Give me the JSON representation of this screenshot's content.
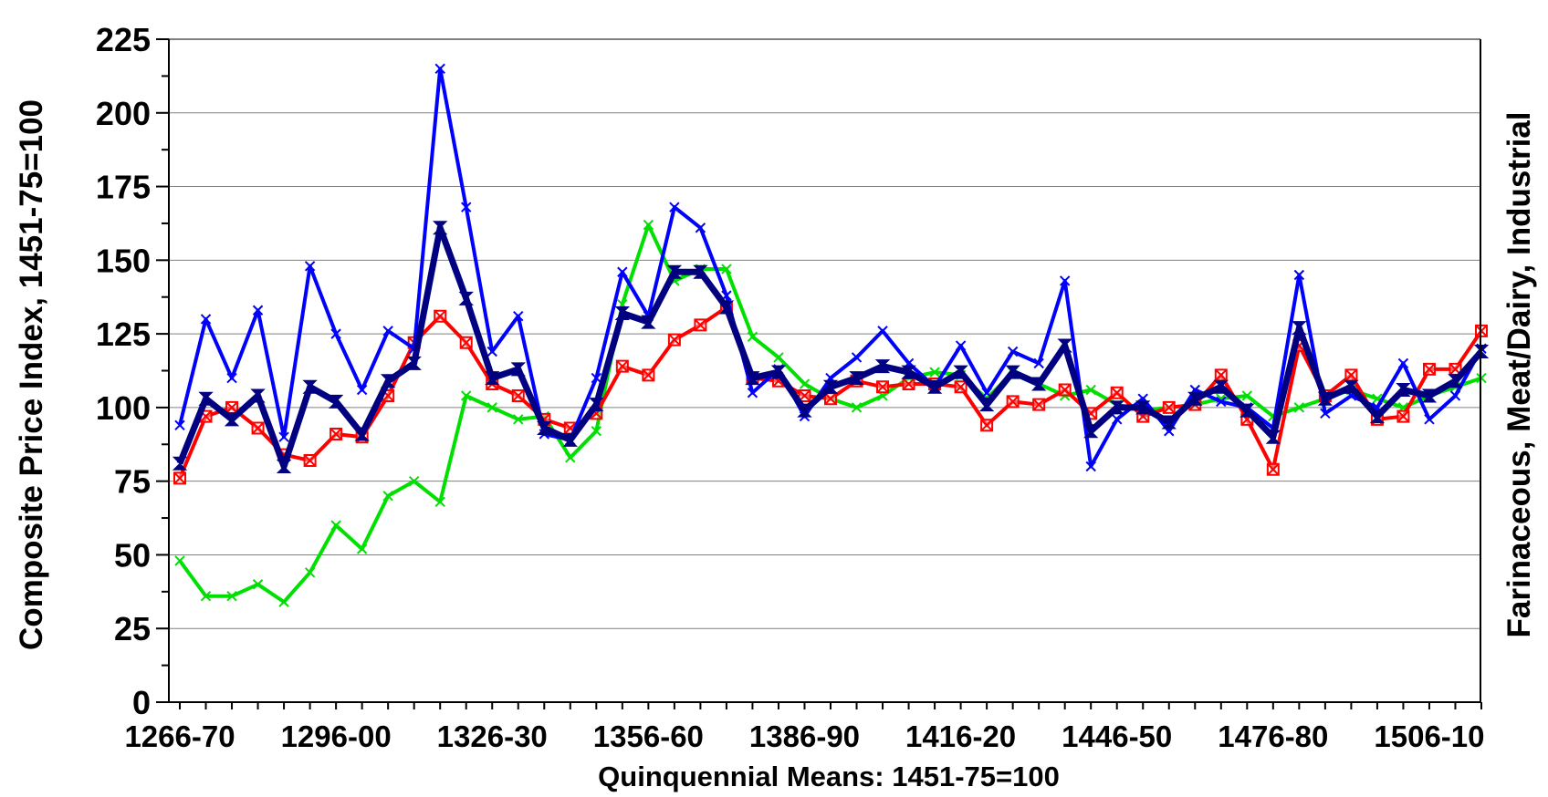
{
  "chart_data": {
    "type": "line",
    "ylabel": "Composite Price Index, 1451-75=100",
    "ylabel_right": "Farinaceous, Meat/Dairy, Industrial",
    "xlabel": "Quinquennial Means: 1451-75=100",
    "ylim": [
      0,
      225
    ],
    "yticks": [
      0,
      25,
      50,
      75,
      100,
      125,
      150,
      175,
      200,
      225
    ],
    "grid": true,
    "x_tick_labels": [
      "1266-70",
      "1296-00",
      "1326-30",
      "1356-60",
      "1386-90",
      "1416-20",
      "1446-50",
      "1476-80",
      "1506-10"
    ],
    "x_tick_label_indices": [
      0,
      6,
      12,
      18,
      24,
      30,
      36,
      42,
      48
    ],
    "series": [
      {
        "color": "#00e000",
        "marker": "x",
        "values": [
          48,
          36,
          36,
          40,
          34,
          44,
          60,
          52,
          70,
          75,
          68,
          104,
          100,
          96,
          97,
          83,
          92,
          135,
          162,
          143,
          147,
          147,
          124,
          117,
          108,
          103,
          100,
          104,
          110,
          112,
          111,
          103,
          112,
          108,
          104,
          106,
          101,
          99,
          100,
          101,
          103,
          104,
          97,
          100,
          103,
          106,
          103,
          100,
          104,
          107,
          110
        ]
      },
      {
        "color": "#ff0000",
        "marker": "square-x",
        "values": [
          76,
          97,
          100,
          93,
          84,
          82,
          91,
          90,
          104,
          122,
          131,
          122,
          108,
          104,
          96,
          93,
          98,
          114,
          111,
          123,
          128,
          134,
          110,
          109,
          104,
          103,
          109,
          107,
          108,
          108,
          107,
          94,
          102,
          101,
          106,
          98,
          105,
          97,
          100,
          101,
          111,
          96,
          79,
          121,
          104,
          111,
          96,
          97,
          113,
          113,
          126
        ]
      },
      {
        "color": "#0000ff",
        "marker": "x",
        "values": [
          94,
          130,
          110,
          133,
          90,
          148,
          125,
          106,
          126,
          120,
          215,
          168,
          119,
          131,
          91,
          89,
          110,
          146,
          131,
          168,
          161,
          138,
          105,
          113,
          97,
          110,
          117,
          126,
          115,
          107,
          121,
          105,
          119,
          115,
          143,
          80,
          96,
          103,
          92,
          106,
          102,
          100,
          93,
          145,
          98,
          104,
          100,
          115,
          96,
          104,
          120
        ]
      },
      {
        "color": "#000080",
        "marker": "hourglass",
        "thick": true,
        "values": [
          81,
          103,
          96,
          104,
          80,
          107,
          102,
          91,
          109,
          115,
          161,
          137,
          110,
          113,
          93,
          89,
          101,
          132,
          129,
          146,
          146,
          134,
          110,
          112,
          99,
          107,
          110,
          114,
          112,
          107,
          112,
          101,
          112,
          108,
          121,
          92,
          100,
          100,
          95,
          103,
          107,
          99,
          90,
          127,
          103,
          107,
          97,
          106,
          104,
          109,
          119
        ]
      }
    ]
  }
}
